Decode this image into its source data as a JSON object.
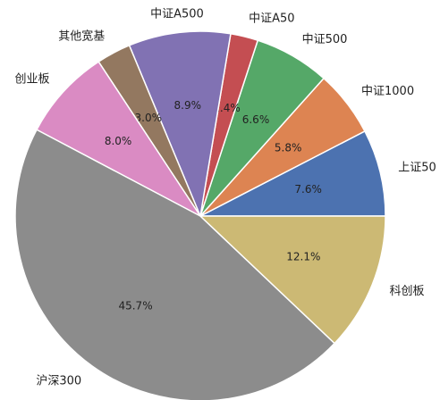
{
  "chart_data": {
    "type": "pie",
    "categories": [
      "上证50",
      "中证1000",
      "中证500",
      "中证A50",
      "中证A500",
      "其他宽基",
      "创业板",
      "沪深300",
      "科创板"
    ],
    "values": [
      7.6,
      5.8,
      6.6,
      2.4,
      8.9,
      3.0,
      8.0,
      45.7,
      12.1
    ],
    "value_labels": [
      "7.6%",
      "5.8%",
      "6.6%",
      "2.4%",
      "8.9%",
      "3.0%",
      "8.0%",
      "45.7%",
      "12.1%"
    ],
    "colors": [
      "#4c72b0",
      "#dd8452",
      "#55a868",
      "#c44e52",
      "#8172b3",
      "#937860",
      "#da8bc3",
      "#8c8c8c",
      "#ccb974"
    ]
  }
}
